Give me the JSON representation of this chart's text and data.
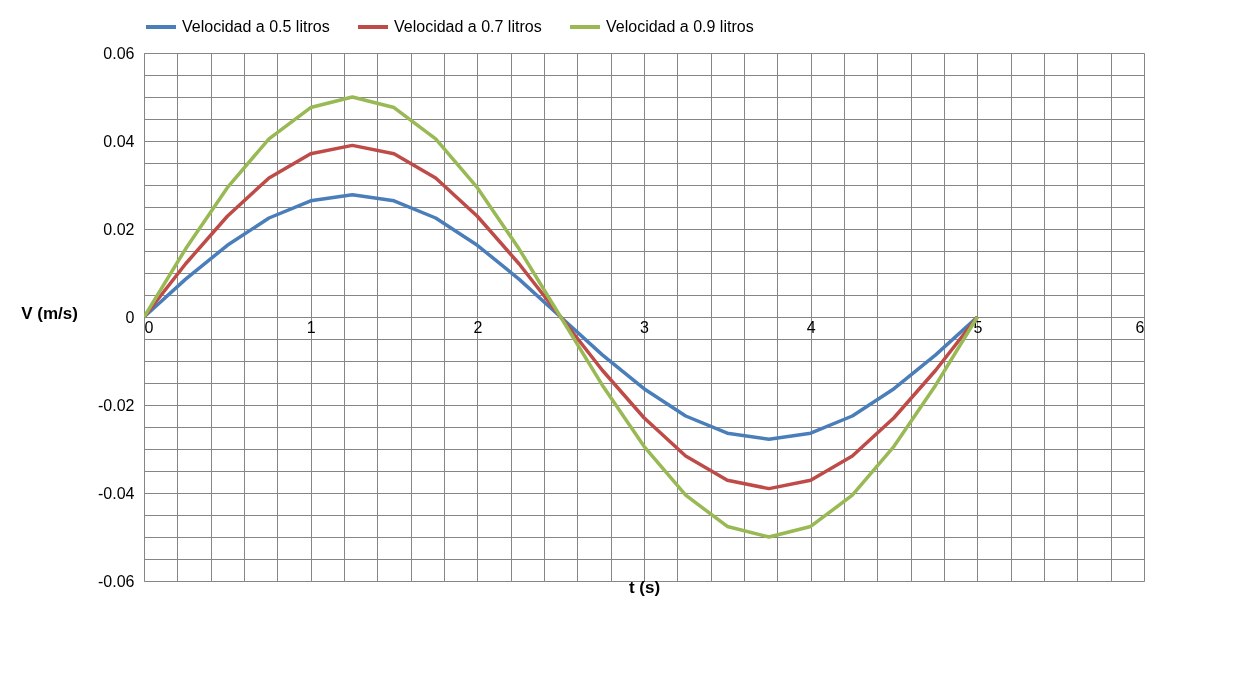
{
  "chart_data": {
    "type": "line",
    "xlabel": "t (s)",
    "ylabel": "V (m/s)",
    "x": [
      0,
      0.25,
      0.5,
      0.75,
      1,
      1.25,
      1.5,
      1.75,
      2,
      2.25,
      2.5,
      2.75,
      3,
      3.25,
      3.5,
      3.75,
      4,
      4.25,
      4.5,
      4.75,
      5
    ],
    "series": [
      {
        "name": "Velocidad a 0.5 litros",
        "color": "#4a7ebb",
        "values": [
          0,
          0.0086,
          0.0163,
          0.0225,
          0.0264,
          0.0278,
          0.0264,
          0.0225,
          0.0163,
          0.0086,
          0,
          -0.0086,
          -0.0163,
          -0.0225,
          -0.0264,
          -0.0278,
          -0.0264,
          -0.0225,
          -0.0163,
          -0.0086,
          0
        ]
      },
      {
        "name": "Velocidad a 0.7 litros",
        "color": "#be4b48",
        "values": [
          0,
          0.0121,
          0.0229,
          0.0316,
          0.0371,
          0.039,
          0.0371,
          0.0316,
          0.0229,
          0.0121,
          0,
          -0.0121,
          -0.0229,
          -0.0316,
          -0.0371,
          -0.039,
          -0.0371,
          -0.0316,
          -0.0229,
          -0.0121,
          0
        ]
      },
      {
        "name": "Velocidad a 0.9 litros",
        "color": "#98b954",
        "values": [
          0,
          0.0155,
          0.0294,
          0.0405,
          0.0476,
          0.05,
          0.0476,
          0.0405,
          0.0294,
          0.0155,
          0,
          -0.0155,
          -0.0294,
          -0.0405,
          -0.0476,
          -0.05,
          -0.0476,
          -0.0405,
          -0.0294,
          -0.0155,
          0
        ]
      }
    ],
    "xlim": [
      0,
      6
    ],
    "xticks": [
      0,
      {
        "value": 0.2,
        "label": null
      },
      {
        "value": 0.4,
        "label": null
      },
      {
        "value": 0.6,
        "label": null
      },
      {
        "value": 0.8,
        "label": null
      },
      1,
      {
        "value": 1.2,
        "label": null
      },
      {
        "value": 1.4,
        "label": null
      },
      {
        "value": 1.6,
        "label": null
      },
      {
        "value": 1.8,
        "label": null
      },
      2,
      {
        "value": 2.2,
        "label": null
      },
      {
        "value": 2.4,
        "label": null
      },
      {
        "value": 2.6,
        "label": null
      },
      {
        "value": 2.8,
        "label": null
      },
      3,
      {
        "value": 3.2,
        "label": null
      },
      {
        "value": 3.4,
        "label": null
      },
      {
        "value": 3.6,
        "label": null
      },
      {
        "value": 3.8,
        "label": null
      },
      4,
      {
        "value": 4.2,
        "label": null
      },
      {
        "value": 4.4,
        "label": null
      },
      {
        "value": 4.6,
        "label": null
      },
      {
        "value": 4.8,
        "label": null
      },
      5,
      {
        "value": 5.2,
        "label": null
      },
      {
        "value": 5.4,
        "label": null
      },
      {
        "value": 5.6,
        "label": null
      },
      {
        "value": 5.8,
        "label": null
      },
      6
    ],
    "ylim": [
      -0.06,
      0.06
    ],
    "yticks": [
      -0.06,
      {
        "value": -0.055,
        "label": null
      },
      {
        "value": -0.05,
        "label": null
      },
      {
        "value": -0.045,
        "label": null
      },
      -0.04,
      {
        "value": -0.035,
        "label": null
      },
      {
        "value": -0.03,
        "label": null
      },
      {
        "value": -0.025,
        "label": null
      },
      -0.02,
      {
        "value": -0.015,
        "label": null
      },
      {
        "value": -0.01,
        "label": null
      },
      {
        "value": -0.005,
        "label": null
      },
      0,
      {
        "value": 0.005,
        "label": null
      },
      {
        "value": 0.01,
        "label": null
      },
      {
        "value": 0.015,
        "label": null
      },
      0.02,
      {
        "value": 0.025,
        "label": null
      },
      {
        "value": 0.03,
        "label": null
      },
      {
        "value": 0.035,
        "label": null
      },
      0.04,
      {
        "value": 0.045,
        "label": null
      },
      {
        "value": 0.05,
        "label": null
      },
      {
        "value": 0.055,
        "label": null
      },
      0.06
    ],
    "grid": true,
    "legend": "top",
    "marker": "none",
    "line_style": "solid"
  }
}
